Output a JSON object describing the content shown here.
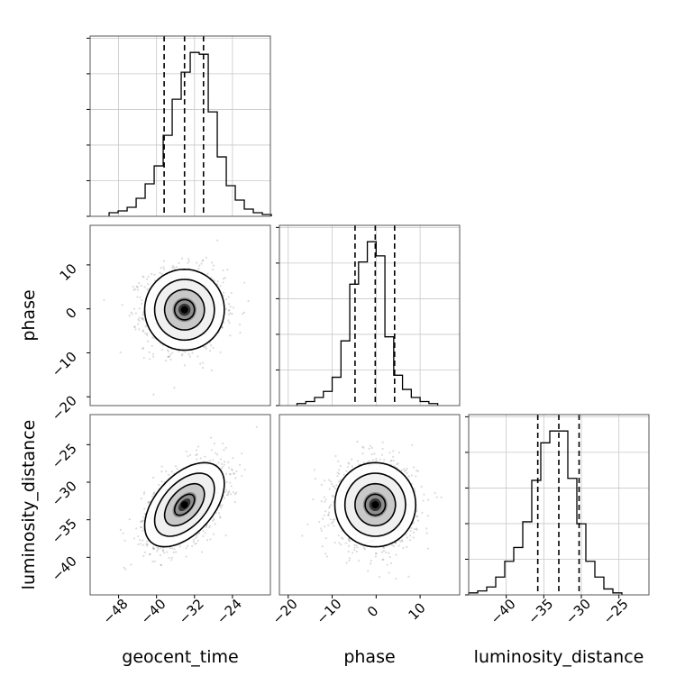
{
  "chart_data": {
    "type": "corner",
    "parameters": [
      {
        "label": "geocent_time",
        "ticks": [
          "−48",
          "−40",
          "−32",
          "−24"
        ],
        "tick_values": [
          -48,
          -40,
          -32,
          -24
        ],
        "range": [
          -54,
          -16
        ],
        "hist_bin_start": -50.0,
        "hist_bin_width": 1.9,
        "hist_counts": [
          2,
          3,
          5,
          10,
          18,
          28,
          45,
          65,
          80,
          91,
          90,
          58,
          33,
          17,
          9,
          4,
          2,
          1
        ],
        "quantiles": [
          -38.4,
          -34.1,
          -30.1
        ]
      },
      {
        "label": "phase",
        "ticks": [
          "−20",
          "−10",
          "0",
          "10"
        ],
        "tick_values": [
          -20,
          -10,
          0,
          10
        ],
        "range": [
          -22,
          19
        ],
        "hist_bin_start": -18.0,
        "hist_bin_width": 2.0,
        "hist_counts": [
          1,
          2,
          4,
          7,
          14,
          32,
          60,
          71,
          81,
          74,
          34,
          15,
          8,
          4,
          2,
          1
        ],
        "quantiles": [
          -4.8,
          -0.2,
          4.2
        ]
      },
      {
        "label": "luminosity_distance",
        "ticks": [
          "−40",
          "−35",
          "−30",
          "−25"
        ],
        "tick_values": [
          -40,
          -35,
          -30,
          -25
        ],
        "range": [
          -45,
          -21
        ],
        "hist_bin_start": -45.0,
        "hist_bin_width": 1.2,
        "hist_counts": [
          1,
          2,
          4,
          9,
          17,
          24,
          37,
          58,
          77,
          83,
          83,
          59,
          36,
          17,
          9,
          3,
          1
        ],
        "quantiles": [
          -35.8,
          -33.0,
          -30.3
        ]
      }
    ],
    "pairs": [
      {
        "x": 0,
        "y": 1,
        "center": [
          -34.1,
          -0.2
        ],
        "sigma": [
          4.2,
          4.6
        ],
        "rho": 0.0
      },
      {
        "x": 0,
        "y": 2,
        "center": [
          -34.1,
          -33.0
        ],
        "sigma": [
          4.2,
          2.8
        ],
        "rho": 0.5
      },
      {
        "x": 1,
        "y": 2,
        "center": [
          -0.2,
          -33.0
        ],
        "sigma": [
          4.6,
          2.8
        ],
        "rho": 0.0
      }
    ]
  }
}
